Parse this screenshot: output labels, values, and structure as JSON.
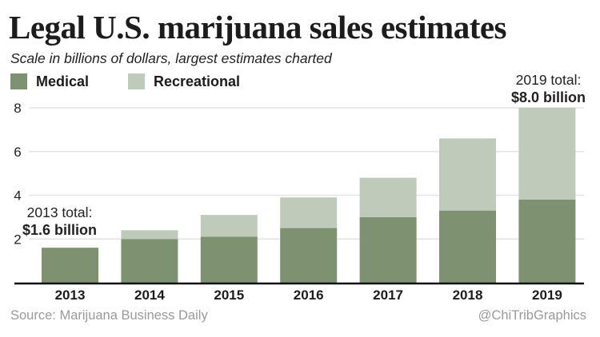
{
  "chart_data": {
    "type": "bar",
    "stacked": true,
    "title": "Legal U.S. marijuana sales estimates",
    "subtitle": "Scale in billions of dollars, largest estimates charted",
    "xlabel": "",
    "ylabel": "",
    "ylim": [
      0,
      8
    ],
    "yticks": [
      2,
      4,
      6,
      8
    ],
    "grid": true,
    "legend_position": "top-left",
    "categories": [
      "2013",
      "2014",
      "2015",
      "2016",
      "2017",
      "2018",
      "2019"
    ],
    "series": [
      {
        "name": "Medical",
        "color": "#7e9170",
        "values": [
          1.6,
          2.0,
          2.1,
          2.5,
          3.0,
          3.3,
          3.8
        ]
      },
      {
        "name": "Recreational",
        "color": "#bfcabb",
        "values": [
          0.0,
          0.4,
          1.0,
          1.4,
          1.8,
          3.3,
          4.2
        ]
      }
    ],
    "totals": [
      1.6,
      2.4,
      3.1,
      3.9,
      4.8,
      6.6,
      8.0
    ],
    "annotations": [
      {
        "category": "2013",
        "line1": "2013 total:",
        "line2": "$1.6 billion"
      },
      {
        "category": "2019",
        "line1": "2019 total:",
        "line2": "$8.0 billion"
      }
    ],
    "source": "Source: Marijuana Business Daily",
    "credit": "@ChiTribGraphics"
  },
  "colors": {
    "medical": "#7e9170",
    "recreational": "#bfcabb",
    "gridline": "#e3e3e3",
    "axis": "#111111",
    "footer_text": "#9a9a9a"
  }
}
